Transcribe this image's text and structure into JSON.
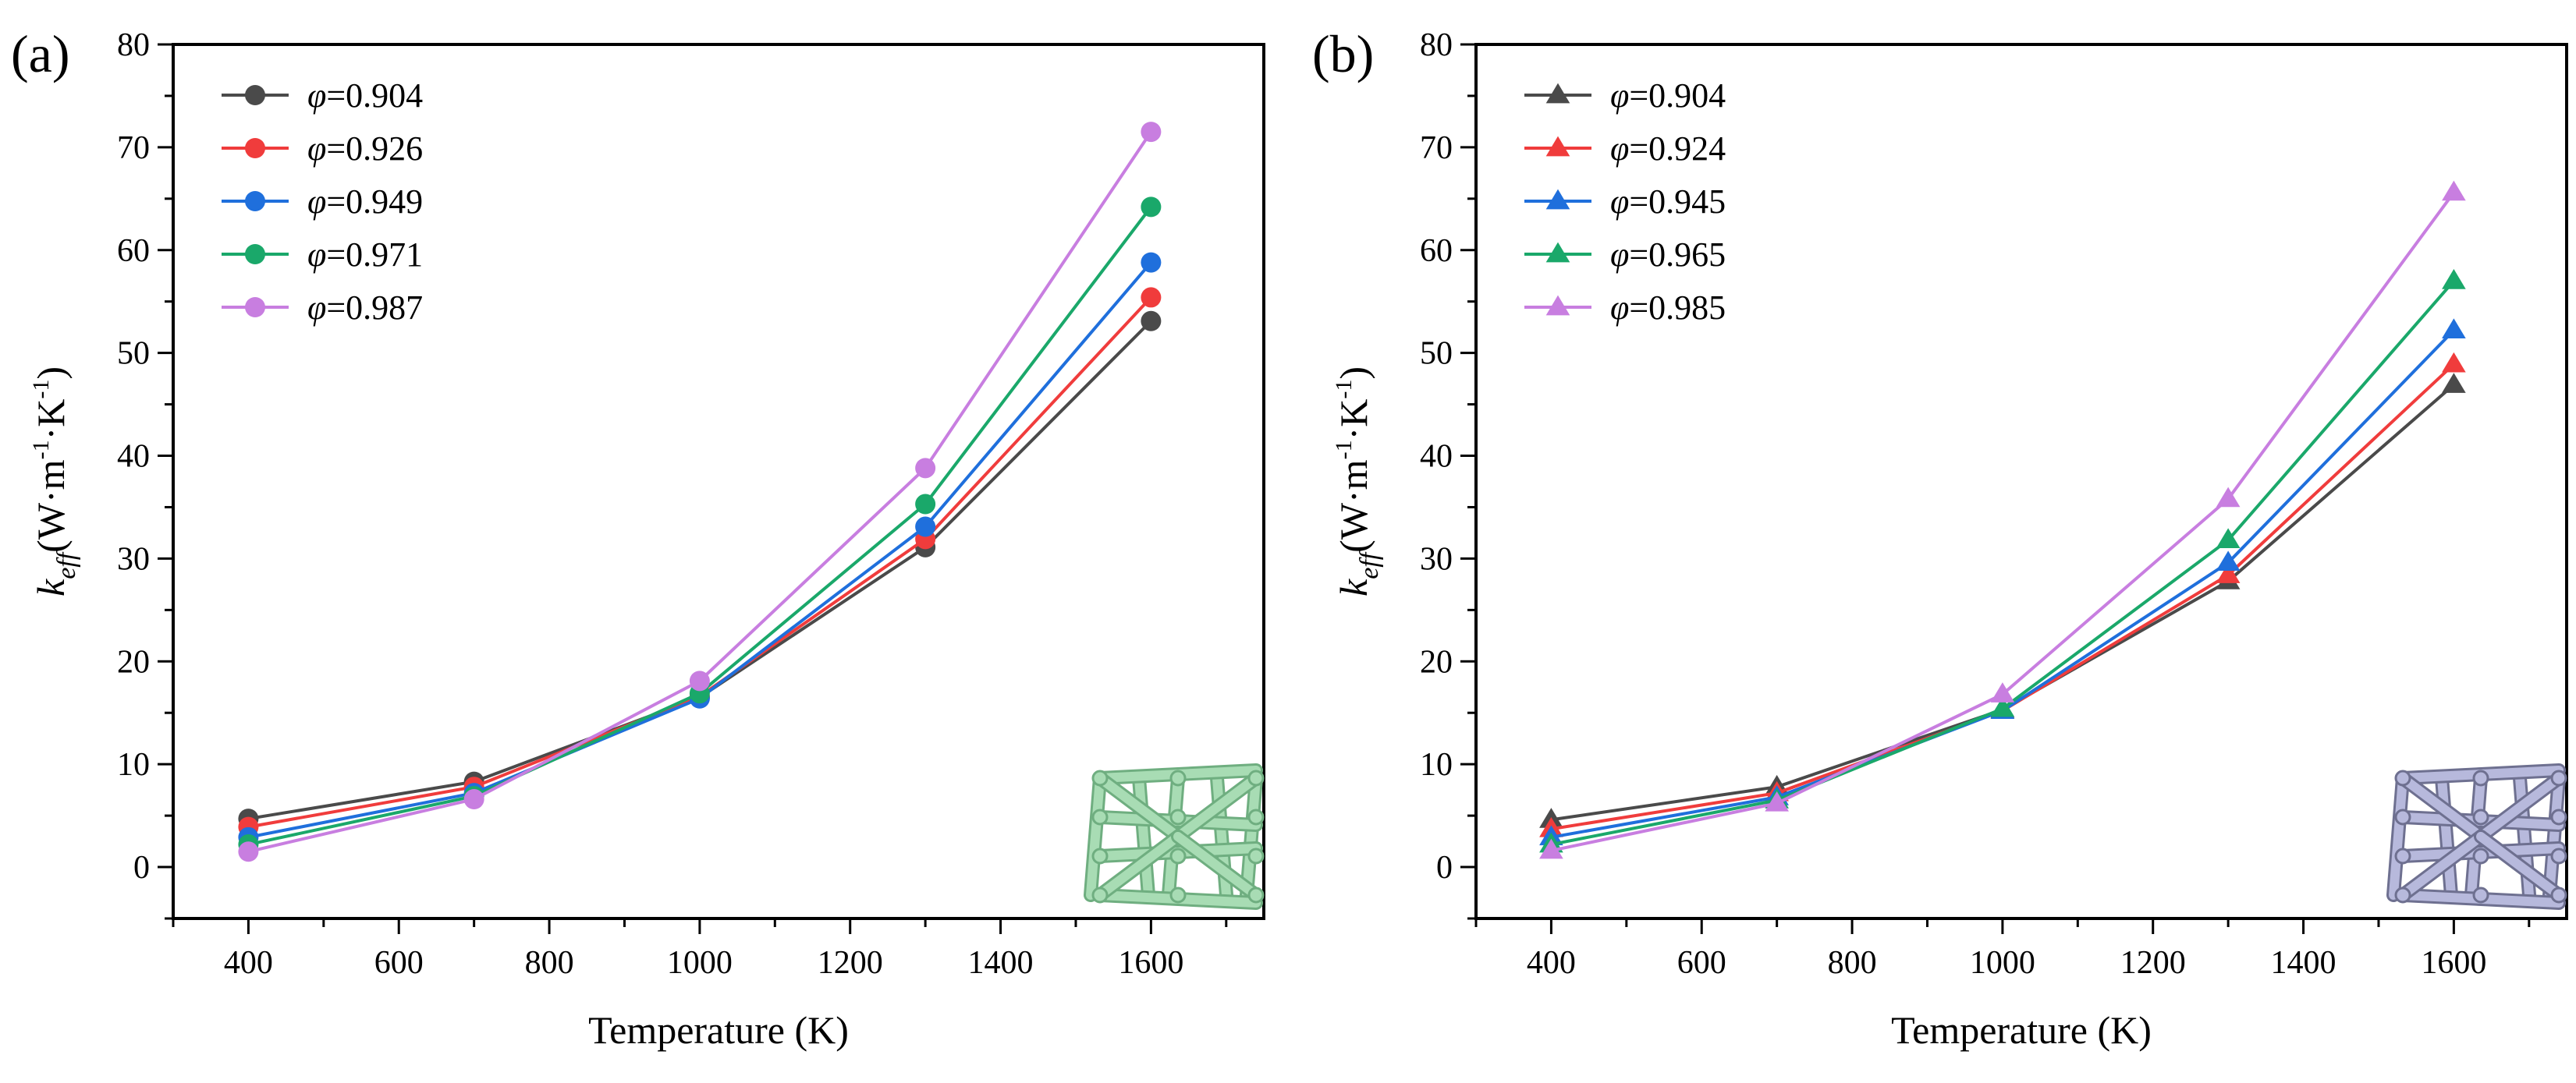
{
  "chart_data": [
    {
      "type": "line",
      "panel_label": "(a)",
      "marker": "circle",
      "x": [
        400,
        700,
        1000,
        1300,
        1600
      ],
      "xlabel": "Temperature (K)",
      "ylabel": {
        "k": "k",
        "sub": "eff",
        "units": "(W·m",
        "sup1": "-1",
        "mid": "·K",
        "sup2": "-1",
        "close": ")"
      },
      "xlim": [
        300,
        1750
      ],
      "ylim": [
        -5,
        80
      ],
      "xticks": [
        400,
        600,
        800,
        1000,
        1200,
        1400,
        1600
      ],
      "yticks": [
        0,
        10,
        20,
        30,
        40,
        50,
        60,
        70,
        80
      ],
      "legend_position": "top-left",
      "series": [
        {
          "name": "φ=0.904",
          "symbol": "φ",
          "value": "=0.904",
          "color": "#4a4a4a",
          "values": [
            4.7,
            8.3,
            16.5,
            31.1,
            53.1
          ]
        },
        {
          "name": "φ=0.926",
          "symbol": "φ",
          "value": "=0.926",
          "color": "#f03c3c",
          "values": [
            3.9,
            7.8,
            16.6,
            31.9,
            55.4
          ]
        },
        {
          "name": "φ=0.949",
          "symbol": "φ",
          "value": "=0.949",
          "color": "#1f6fdc",
          "values": [
            2.9,
            7.2,
            16.4,
            33.1,
            58.8
          ]
        },
        {
          "name": "φ=0.971",
          "symbol": "φ",
          "value": "=0.971",
          "color": "#1aa86a",
          "values": [
            2.2,
            6.9,
            16.9,
            35.3,
            64.2
          ]
        },
        {
          "name": "φ=0.987",
          "symbol": "φ",
          "value": "=0.987",
          "color": "#c87ee0",
          "values": [
            1.5,
            6.6,
            18.1,
            38.8,
            71.5
          ]
        }
      ],
      "inset_color": "#a8dcb4"
    },
    {
      "type": "line",
      "panel_label": "(b)",
      "marker": "triangle",
      "x": [
        400,
        700,
        1000,
        1300,
        1600
      ],
      "xlabel": "Temperature (K)",
      "ylabel": {
        "k": "k",
        "sub": "eff",
        "units": "(W·m",
        "sup1": "-1",
        "mid": "·K",
        "sup2": "-1",
        "close": ")"
      },
      "xlim": [
        300,
        1750
      ],
      "ylim": [
        -5,
        80
      ],
      "xticks": [
        400,
        600,
        800,
        1000,
        1200,
        1400,
        1600
      ],
      "yticks": [
        0,
        10,
        20,
        30,
        40,
        50,
        60,
        70,
        80
      ],
      "legend_position": "top-left",
      "series": [
        {
          "name": "φ=0.904",
          "symbol": "φ",
          "value": "=0.904",
          "color": "#4a4a4a",
          "values": [
            4.6,
            7.8,
            15.3,
            27.8,
            46.9
          ]
        },
        {
          "name": "φ=0.924",
          "symbol": "φ",
          "value": "=0.924",
          "color": "#f03c3c",
          "values": [
            3.7,
            7.2,
            15.2,
            28.4,
            48.9
          ]
        },
        {
          "name": "φ=0.945",
          "symbol": "φ",
          "value": "=0.945",
          "color": "#1f6fdc",
          "values": [
            2.9,
            6.8,
            15.2,
            29.6,
            52.2
          ]
        },
        {
          "name": "φ=0.965",
          "symbol": "φ",
          "value": "=0.965",
          "color": "#1aa86a",
          "values": [
            2.2,
            6.5,
            15.4,
            31.8,
            57.0
          ]
        },
        {
          "name": "φ=0.985",
          "symbol": "φ",
          "value": "=0.985",
          "color": "#c87ee0",
          "values": [
            1.6,
            6.2,
            16.8,
            35.8,
            65.6
          ]
        }
      ],
      "inset_color": "#b7b9dc"
    }
  ]
}
